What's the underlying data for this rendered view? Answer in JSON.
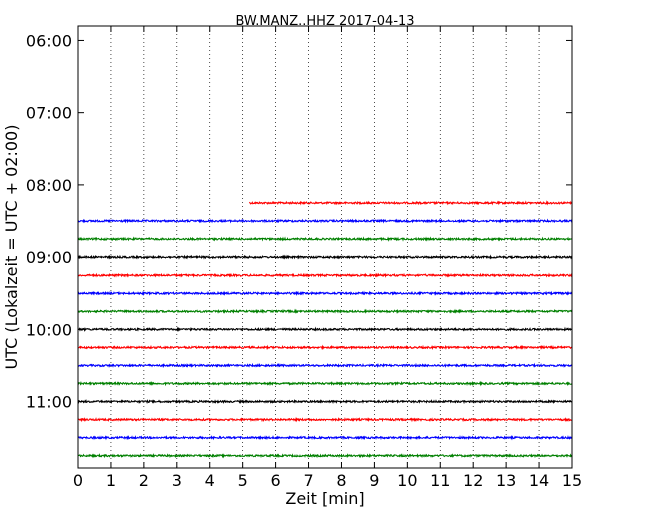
{
  "chart_data": {
    "type": "line",
    "title": "BW.MANZ..HHZ 2017-04-13",
    "xlabel": "Zeit  [min]",
    "ylabel": "UTC (Lokalzeit = UTC + 02:00)",
    "xlim": [
      0,
      15
    ],
    "x_ticks": [
      "0",
      "1",
      "2",
      "3",
      "4",
      "5",
      "6",
      "7",
      "8",
      "9",
      "10",
      "11",
      "12",
      "13",
      "14",
      "15"
    ],
    "y_ticks": [
      {
        "time": "06:00",
        "hours": 6.0
      },
      {
        "time": "07:00",
        "hours": 7.0
      },
      {
        "time": "08:00",
        "hours": 8.0
      },
      {
        "time": "09:00",
        "hours": 9.0
      },
      {
        "time": "10:00",
        "hours": 10.0
      },
      {
        "time": "11:00",
        "hours": 11.0
      }
    ],
    "ylim_hours": [
      5.8,
      11.92
    ],
    "grid": "vertical dotted",
    "traces": [
      {
        "row_start": "08:15",
        "color": "#ff0000",
        "x_start_min": 5.2,
        "x_end_min": 15
      },
      {
        "row_start": "08:30",
        "color": "#0000ff",
        "x_start_min": 0,
        "x_end_min": 15
      },
      {
        "row_start": "08:45",
        "color": "#008000",
        "x_start_min": 0,
        "x_end_min": 15
      },
      {
        "row_start": "09:00",
        "color": "#000000",
        "x_start_min": 0,
        "x_end_min": 15
      },
      {
        "row_start": "09:15",
        "color": "#ff0000",
        "x_start_min": 0,
        "x_end_min": 15
      },
      {
        "row_start": "09:30",
        "color": "#0000ff",
        "x_start_min": 0,
        "x_end_min": 15
      },
      {
        "row_start": "09:45",
        "color": "#008000",
        "x_start_min": 0,
        "x_end_min": 15
      },
      {
        "row_start": "10:00",
        "color": "#000000",
        "x_start_min": 0,
        "x_end_min": 15
      },
      {
        "row_start": "10:15",
        "color": "#ff0000",
        "x_start_min": 0,
        "x_end_min": 15
      },
      {
        "row_start": "10:30",
        "color": "#0000ff",
        "x_start_min": 0,
        "x_end_min": 15
      },
      {
        "row_start": "10:45",
        "color": "#008000",
        "x_start_min": 0,
        "x_end_min": 15
      },
      {
        "row_start": "11:00",
        "color": "#000000",
        "x_start_min": 0,
        "x_end_min": 15
      },
      {
        "row_start": "11:15",
        "color": "#ff0000",
        "x_start_min": 0,
        "x_end_min": 15
      },
      {
        "row_start": "11:30",
        "color": "#0000ff",
        "x_start_min": 0,
        "x_end_min": 15
      },
      {
        "row_start": "11:45",
        "color": "#008000",
        "x_start_min": 0,
        "x_end_min": 15
      }
    ]
  }
}
